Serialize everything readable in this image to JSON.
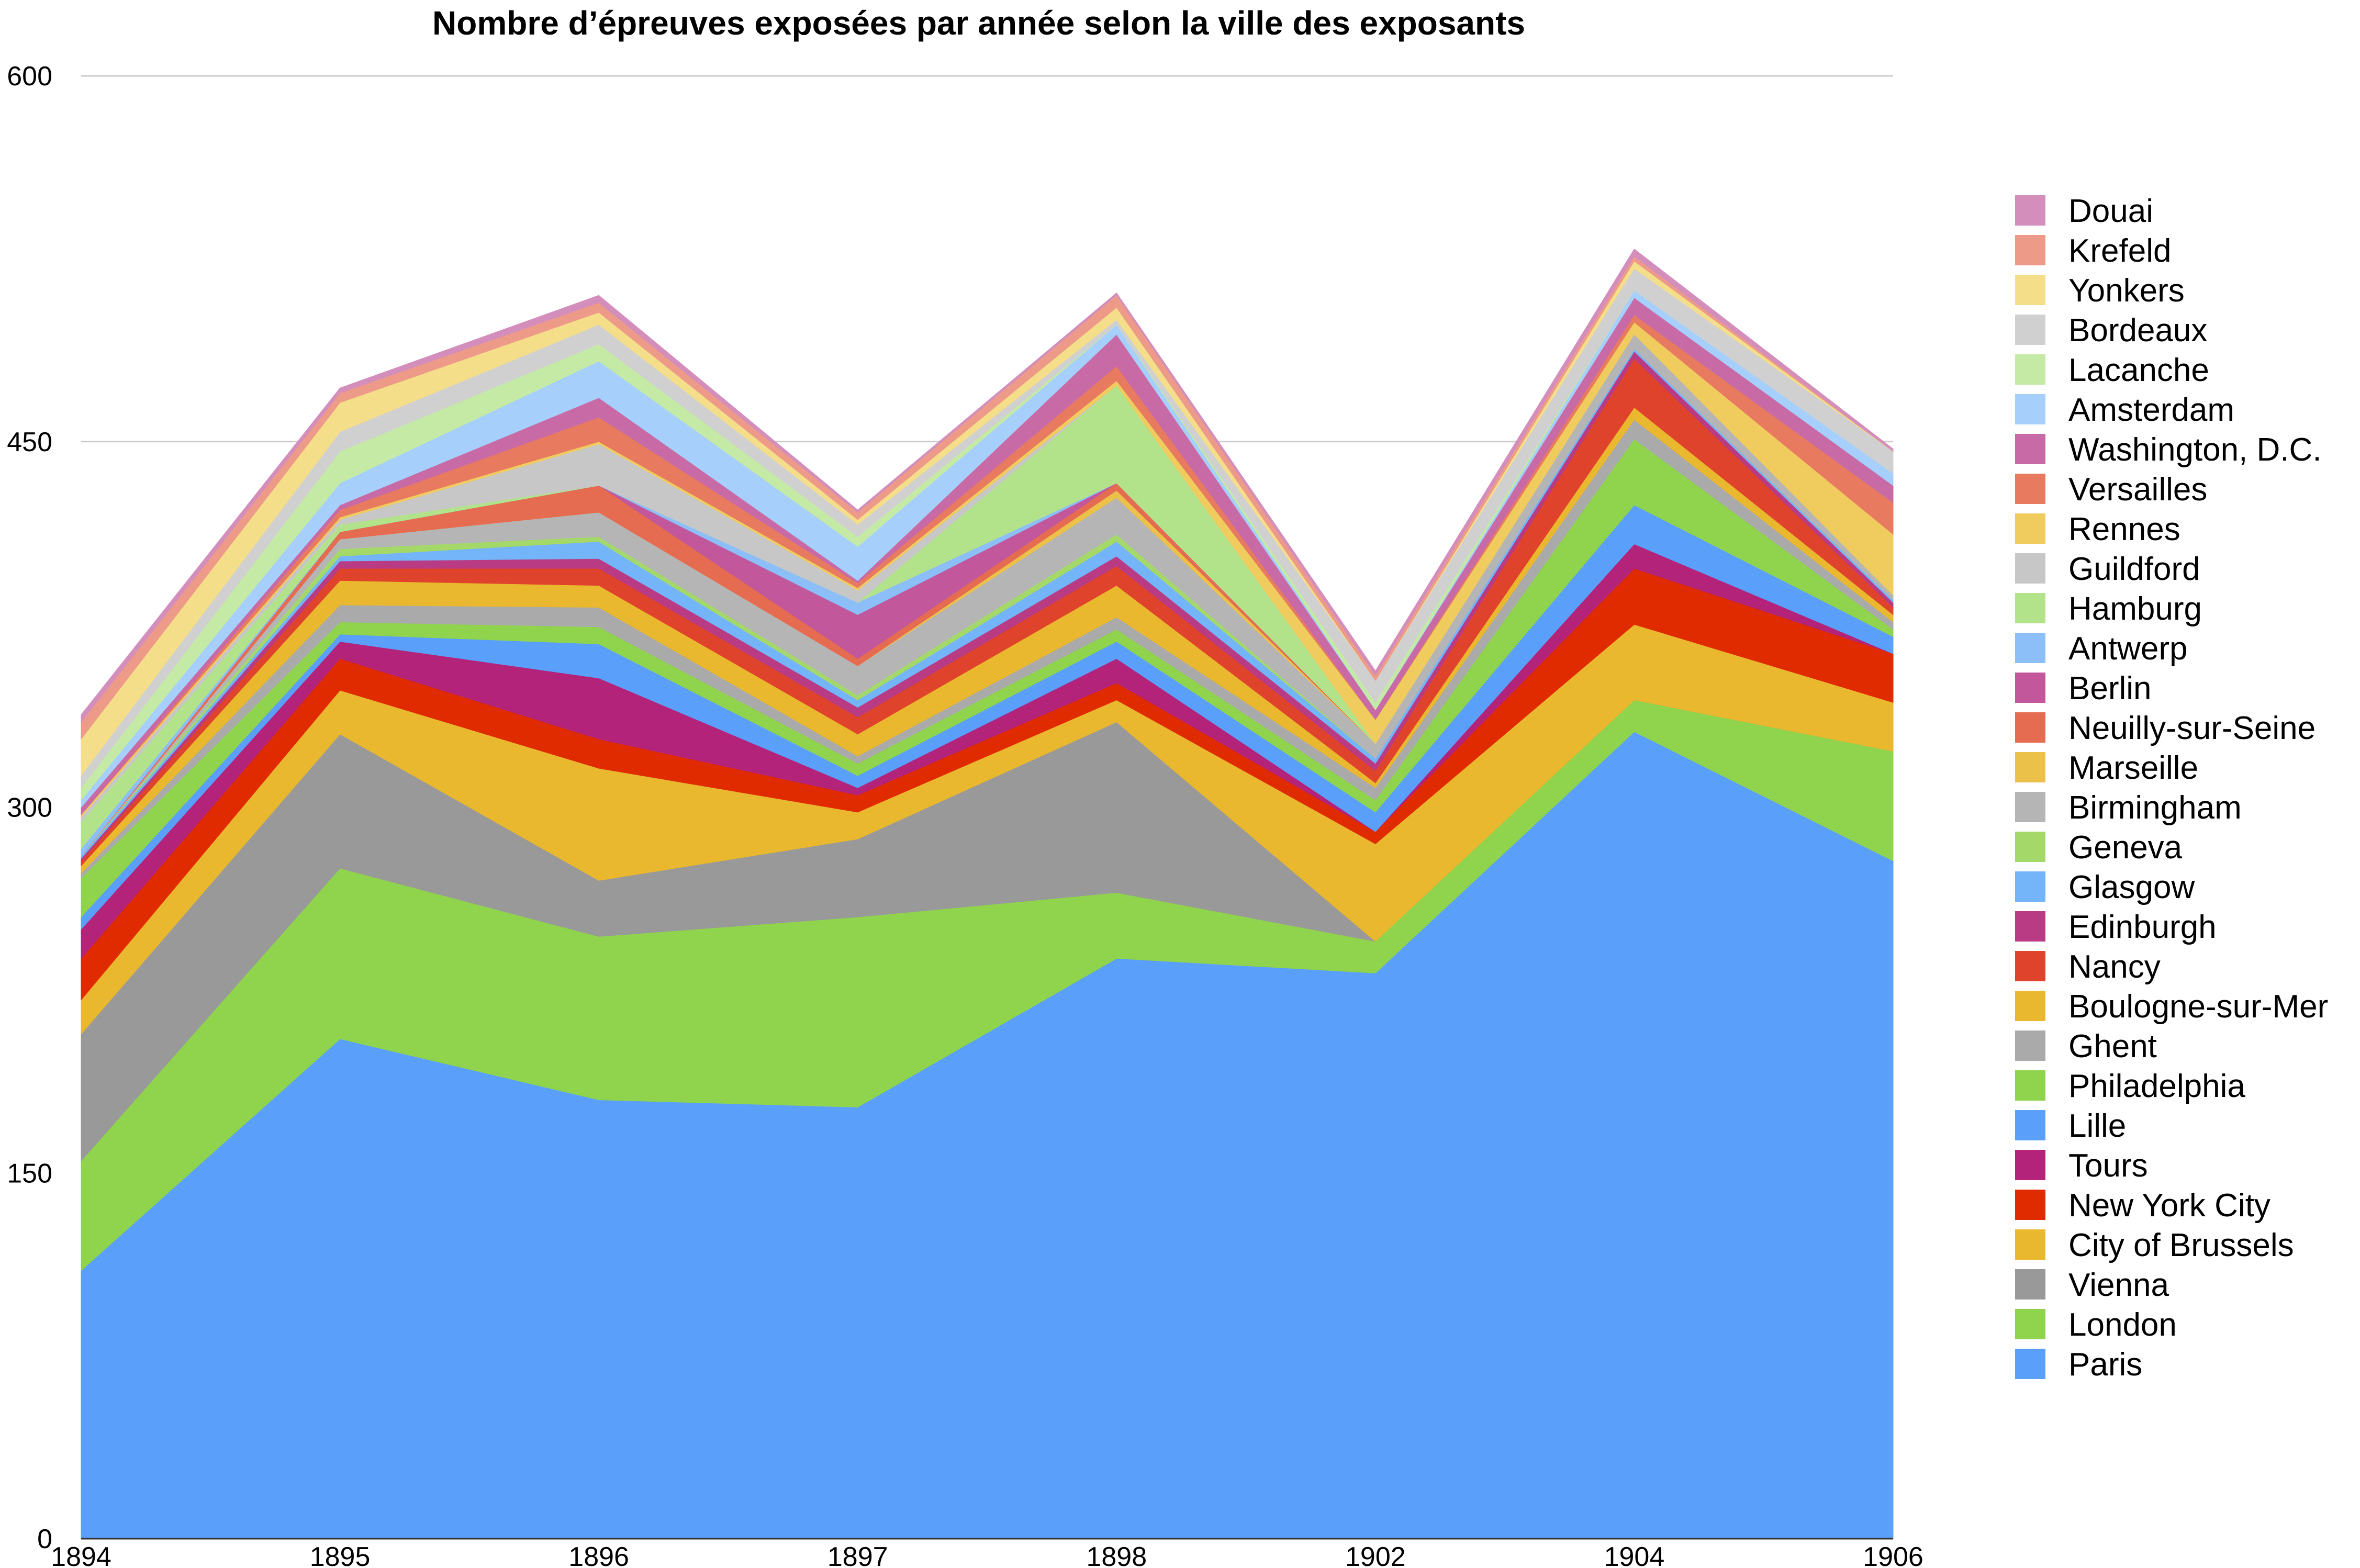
{
  "chart_data": {
    "type": "area",
    "stacked": true,
    "title": "Nombre d’épreuves exposées par année selon la ville des exposants",
    "x": [
      "1894",
      "1895",
      "1896",
      "1897",
      "1898",
      "1902",
      "1904",
      "1906"
    ],
    "ylim": [
      0,
      600
    ],
    "yticks": [
      "0",
      "150",
      "300",
      "450",
      "600"
    ],
    "grid": true,
    "legend_position": "right",
    "series": [
      {
        "name": "Paris",
        "color": "#5aa0fb",
        "values": [
          110,
          205,
          180,
          177,
          238,
          232,
          331,
          278
        ]
      },
      {
        "name": "London",
        "color": "#8fd44c",
        "values": [
          45,
          70,
          67,
          78,
          27,
          13,
          13,
          45
        ]
      },
      {
        "name": "Vienna",
        "color": "#999999",
        "values": [
          52,
          55,
          23,
          32,
          70,
          0,
          0,
          0
        ]
      },
      {
        "name": "City of Brussels",
        "color": "#e9b82e",
        "values": [
          14,
          18,
          46,
          11,
          9,
          40,
          31,
          20
        ]
      },
      {
        "name": "New York City",
        "color": "#e02a00",
        "values": [
          17,
          13,
          12,
          7,
          7,
          5,
          23,
          20
        ]
      },
      {
        "name": "Tours",
        "color": "#b3237a",
        "values": [
          12,
          7,
          25,
          3,
          10,
          0,
          10,
          0
        ]
      },
      {
        "name": "Lille",
        "color": "#5aa0fb",
        "values": [
          5,
          3,
          14,
          5,
          7,
          8,
          16,
          7
        ]
      },
      {
        "name": "Philadelphia",
        "color": "#8fd44c",
        "values": [
          16,
          5,
          7,
          5,
          5,
          5,
          27,
          3
        ]
      },
      {
        "name": "Ghent",
        "color": "#aaaaaa",
        "values": [
          2,
          7,
          8,
          3,
          5,
          5,
          8,
          3
        ]
      },
      {
        "name": "Boulogne-sur-Mer",
        "color": "#e9b82e",
        "values": [
          3,
          10,
          9,
          9,
          13,
          2,
          5,
          3
        ]
      },
      {
        "name": "Nancy",
        "color": "#e0432b",
        "values": [
          2,
          5,
          7,
          7,
          8,
          5,
          20,
          3
        ]
      },
      {
        "name": "Edinburgh",
        "color": "#b83b84",
        "values": [
          1,
          3,
          4,
          4,
          4,
          3,
          3,
          2
        ]
      },
      {
        "name": "Glasgow",
        "color": "#74b4f8",
        "values": [
          1,
          2,
          7,
          3,
          6,
          2,
          1,
          1
        ]
      },
      {
        "name": "Geneva",
        "color": "#a4d96a",
        "values": [
          0,
          3,
          2,
          2,
          3,
          0,
          0,
          0
        ]
      },
      {
        "name": "Birmingham",
        "color": "#b5b5b5",
        "values": [
          0,
          4,
          10,
          12,
          15,
          6,
          6,
          2
        ]
      },
      {
        "name": "Marseille",
        "color": "#ecc14a",
        "values": [
          0,
          0,
          0,
          0,
          3,
          0,
          0,
          0
        ]
      },
      {
        "name": "Neuilly-sur-Seine",
        "color": "#e56b51",
        "values": [
          0,
          3,
          11,
          3,
          3,
          0,
          0,
          0
        ]
      },
      {
        "name": "Berlin",
        "color": "#c2579b",
        "values": [
          0,
          0,
          0,
          18,
          0,
          0,
          0,
          0
        ]
      },
      {
        "name": "Antwerp",
        "color": "#8cbef8",
        "values": [
          3,
          0,
          0,
          5,
          0,
          0,
          0,
          0
        ]
      },
      {
        "name": "Hamburg",
        "color": "#b2e38a",
        "values": [
          11,
          3,
          0,
          0,
          40,
          0,
          0,
          0
        ]
      },
      {
        "name": "Guildford",
        "color": "#c7c7c7",
        "values": [
          2,
          2,
          17,
          5,
          0,
          0,
          0,
          0
        ]
      },
      {
        "name": "Rennes",
        "color": "#f0cb5e",
        "values": [
          1,
          1,
          1,
          1,
          2,
          10,
          5,
          25
        ]
      },
      {
        "name": "Versailles",
        "color": "#e87a60",
        "values": [
          0,
          3,
          10,
          2,
          6,
          0,
          3,
          13
        ]
      },
      {
        "name": "Washington, D.C.",
        "color": "#c86aa5",
        "values": [
          3,
          2,
          8,
          1,
          13,
          4,
          7,
          7
        ]
      },
      {
        "name": "Amsterdam",
        "color": "#a6d0fb",
        "values": [
          3,
          9,
          15,
          14,
          4,
          0,
          3,
          5
        ]
      },
      {
        "name": "Lacanche",
        "color": "#c4eaa6",
        "values": [
          5,
          13,
          7,
          4,
          0,
          3,
          0,
          0
        ]
      },
      {
        "name": "Bordeaux",
        "color": "#d0d0d0",
        "values": [
          5,
          8,
          8,
          5,
          2,
          9,
          9,
          9
        ]
      },
      {
        "name": "Yonkers",
        "color": "#f5de8a",
        "values": [
          15,
          12,
          5,
          2,
          5,
          0,
          3,
          0
        ]
      },
      {
        "name": "Krefeld",
        "color": "#ed9a88",
        "values": [
          7,
          4,
          4,
          3,
          5,
          2,
          2,
          0
        ]
      },
      {
        "name": "Douai",
        "color": "#d48ebc",
        "values": [
          3,
          2,
          3,
          1,
          1,
          2,
          3,
          1
        ]
      }
    ]
  }
}
